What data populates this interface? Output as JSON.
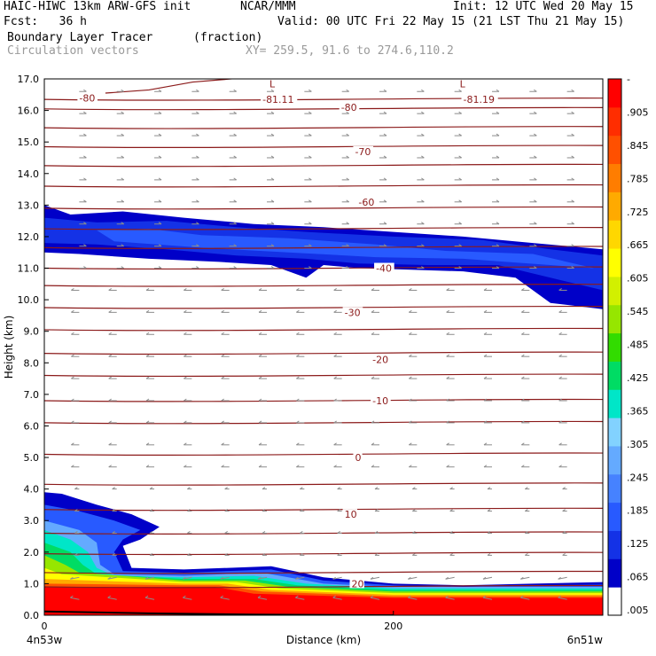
{
  "header": {
    "model": "HAIC-HIWC 13km ARW-GFS init",
    "org": "NCAR/MMM",
    "init": "Init: 12 UTC Wed 20 May 15",
    "fcst": "Fcst:   36 h",
    "valid": "Valid: 00 UTC Fri 22 May 15 (21 LST Thu 21 May 15)",
    "field": "Boundary Layer Tracer",
    "units": "(fraction)",
    "overlay": "Circulation vectors",
    "xy": "XY= 259.5, 91.6 to 274.6,110.2"
  },
  "chart_data": {
    "type": "heatmap",
    "title": "Boundary Layer Tracer (fraction)",
    "xlabel": "Distance (km)",
    "ylabel": "Height (km)",
    "xlim": [
      0,
      320
    ],
    "ylim": [
      0,
      17
    ],
    "x_ticks": [
      {
        "v": 0,
        "label": "0"
      },
      {
        "v": 200,
        "label": "200"
      }
    ],
    "x_end_labels": [
      "4n53w",
      "6n51w"
    ],
    "y_ticks": [
      "0.0",
      "1.0",
      "2.0",
      "3.0",
      "4.0",
      "5.0",
      "6.0",
      "7.0",
      "8.0",
      "9.0",
      "10.0",
      "11.0",
      "12.0",
      "13.0",
      "14.0",
      "15.0",
      "16.0",
      "17.0"
    ],
    "colorbar": {
      "labels": [
        ".005",
        ".065",
        ".125",
        ".185",
        ".245",
        ".305",
        ".365",
        ".425",
        ".485",
        ".545",
        ".605",
        ".665",
        ".725",
        ".785",
        ".845",
        ".905",
        "-"
      ],
      "colors": [
        "#ffffff",
        "#0000c8",
        "#1432e6",
        "#285aff",
        "#4682ff",
        "#64aaff",
        "#82d2ff",
        "#00e6c8",
        "#00dc64",
        "#32dc00",
        "#96e600",
        "#d2f000",
        "#ffff00",
        "#ffd700",
        "#ffaa00",
        "#ff7d00",
        "#ff5000",
        "#ff2d00",
        "#ff0000"
      ]
    },
    "temperature_labels": [
      {
        "label": "-80",
        "x": 20,
        "h": 16.4
      },
      {
        "label": "-81.11",
        "x": 125,
        "h": 16.35
      },
      {
        "label": "-81.19",
        "x": 240,
        "h": 16.35
      },
      {
        "label": "-80",
        "x": 170,
        "h": 16.1
      },
      {
        "label": "-70",
        "x": 178,
        "h": 14.7
      },
      {
        "label": "-60",
        "x": 180,
        "h": 13.1
      },
      {
        "label": "-40",
        "x": 190,
        "h": 11.0
      },
      {
        "label": "-30",
        "x": 172,
        "h": 9.6
      },
      {
        "label": "-20",
        "x": 188,
        "h": 8.1
      },
      {
        "label": "-10",
        "x": 188,
        "h": 6.8
      },
      {
        "label": "0",
        "x": 178,
        "h": 5.0
      },
      {
        "label": "10",
        "x": 172,
        "h": 3.2
      },
      {
        "label": "20",
        "x": 176,
        "h": 1.0
      }
    ],
    "low_markers": [
      {
        "label": "L",
        "x": 129
      },
      {
        "label": "L",
        "x": 238
      }
    ],
    "isotherm_levels_km": [
      16.35,
      16.05,
      15.45,
      14.85,
      14.25,
      13.6,
      12.9,
      12.25,
      11.65,
      11.0,
      10.45,
      9.75,
      9.05,
      8.3,
      7.6,
      6.8,
      6.1,
      5.1,
      4.15,
      3.35,
      2.6,
      1.95,
      1.35,
      0.9
    ]
  }
}
